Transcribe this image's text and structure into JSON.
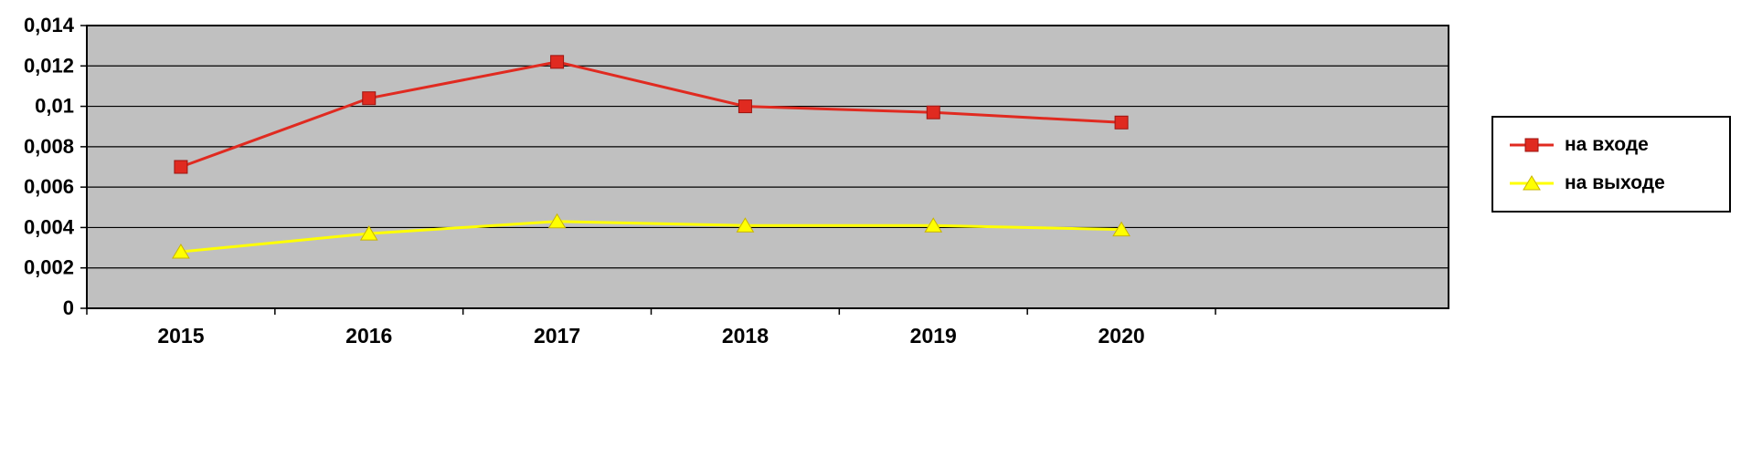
{
  "chart_data": {
    "type": "line",
    "title": "",
    "xlabel": "",
    "ylabel": "",
    "categories": [
      "2015",
      "2016",
      "2017",
      "2018",
      "2019",
      "2020"
    ],
    "series": [
      {
        "name": "на входе",
        "color": "#e02a20",
        "marker": "square",
        "marker_edge": "#9c1410",
        "values": [
          0.007,
          0.0104,
          0.0122,
          0.01,
          0.0097,
          0.0092
        ]
      },
      {
        "name": "на выходе",
        "color": "#ffff00",
        "marker": "triangle-up",
        "marker_edge": "#c8b400",
        "values": [
          0.0028,
          0.0037,
          0.0043,
          0.0041,
          0.0041,
          0.0039
        ]
      }
    ],
    "ylim": [
      0,
      0.014
    ],
    "y_tick_step": 0.002,
    "y_tick_labels": [
      "0",
      "0,002",
      "0,004",
      "0,006",
      "0,008",
      "0,01",
      "0,012",
      "0,014"
    ],
    "x_tick_labels": [
      "2015",
      "2016",
      "2017",
      "2018",
      "2019",
      "2020"
    ],
    "decimal_separator": ",",
    "grid": "on",
    "gridline_color": "#000000",
    "plot_bg": "#c0c0c0",
    "plot_border_color": "#000000",
    "axis_text_color": "#000000",
    "legend_position": "right",
    "legend": [
      "на входе",
      "на выходе"
    ]
  }
}
